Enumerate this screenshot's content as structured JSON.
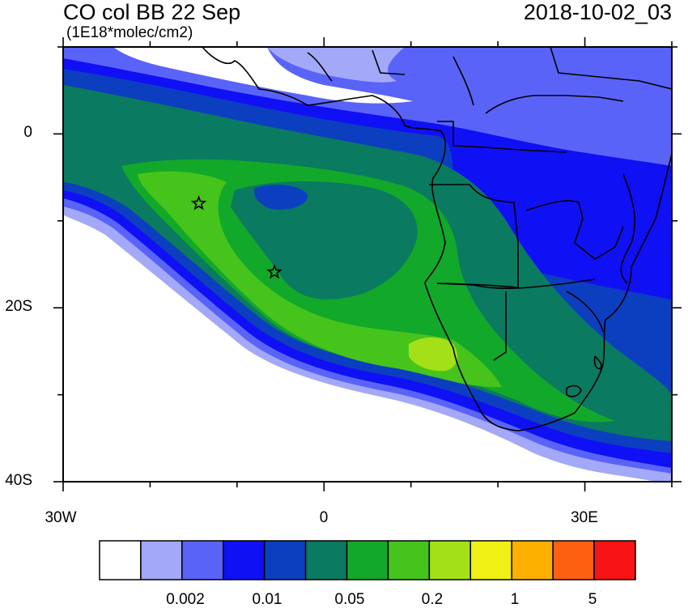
{
  "header": {
    "title": "CO col BB 22 Sep",
    "units": "(1E18*molec/cm2)",
    "datetime": "2018-10-02_03"
  },
  "map": {
    "lon_range": [
      -30,
      40
    ],
    "lat_range": [
      -40,
      10
    ],
    "y_labels": [
      "0",
      "20S",
      "40S"
    ],
    "x_labels": [
      "30W",
      "0",
      "30E"
    ],
    "markers": [
      {
        "type": "star",
        "lon": -14.4,
        "lat": -8.0
      },
      {
        "type": "star",
        "lon": -5.7,
        "lat": -15.9
      }
    ]
  },
  "colorbar": {
    "colors": [
      "#ffffff",
      "#a3a8f8",
      "#5a63f8",
      "#1010f4",
      "#0c3fc0",
      "#0a7a60",
      "#12a82a",
      "#46c41c",
      "#a4e018",
      "#f0f014",
      "#fcb000",
      "#fc6010",
      "#f81414"
    ],
    "labels": [
      "0.002",
      "0.01",
      "0.05",
      "0.2",
      "1",
      "5"
    ]
  }
}
